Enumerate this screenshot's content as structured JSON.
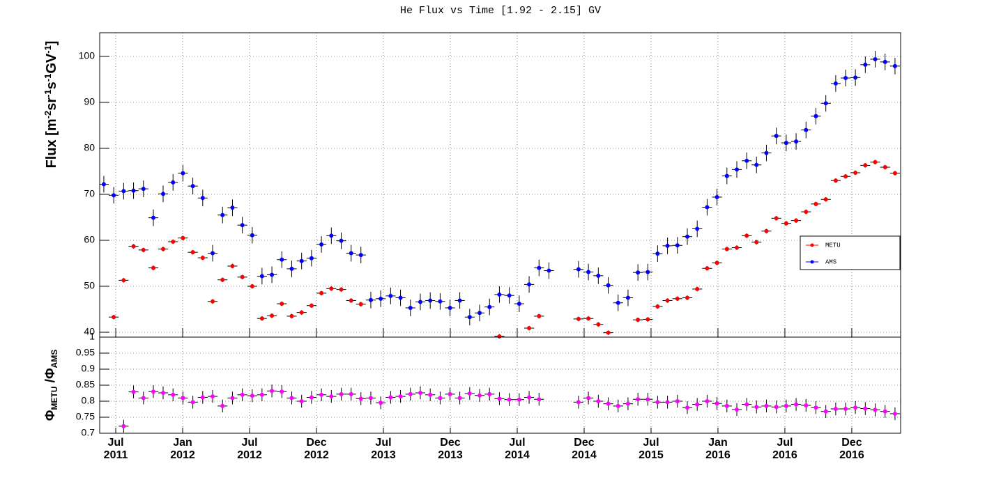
{
  "chart_data": [
    {
      "type": "scatter",
      "title": "He Flux vs Time [1.92 - 2.15] GV",
      "ylabel": [
        "Flux [m",
        "-2",
        "sr",
        "-1",
        "s",
        "-1",
        "GV",
        "-1",
        "]"
      ],
      "x": [
        2011.411,
        2011.485,
        2011.559,
        2011.633,
        2011.707,
        2011.781,
        2011.854,
        2011.928,
        2012.002,
        2012.076,
        2012.15,
        2012.224,
        2012.298,
        2012.372,
        2012.446,
        2012.52,
        2012.593,
        2012.667,
        2012.741,
        2012.815,
        2012.889,
        2012.963,
        2013.037,
        2013.111,
        2013.185,
        2013.259,
        2013.332,
        2013.406,
        2013.48,
        2013.554,
        2013.628,
        2013.702,
        2013.776,
        2013.85,
        2013.924,
        2013.998,
        2014.071,
        2014.145,
        2014.219,
        2014.293,
        2014.367,
        2014.441,
        2014.515,
        2014.589,
        2014.663,
        2014.737,
        2014.81,
        2014.884,
        2014.958,
        2015.032,
        2015.106,
        2015.18,
        2015.254,
        2015.328,
        2015.402,
        2015.476,
        2015.549,
        2015.623,
        2015.697,
        2015.771,
        2015.845,
        2015.919,
        2015.993,
        2016.067,
        2016.141,
        2016.215,
        2016.288,
        2016.362,
        2016.436,
        2016.51,
        2016.584,
        2016.658,
        2016.732,
        2016.806,
        2016.88,
        2016.954,
        2017.027,
        2017.101,
        2017.175,
        2017.249,
        2017.323
      ],
      "xlim": [
        2011.38,
        2017.365
      ],
      "xticks": [
        2011.5,
        2012,
        2012.5,
        2013,
        2013.5,
        2014,
        2014.5,
        2015,
        2015.5,
        2016,
        2016.5,
        2017
      ],
      "ylim": [
        38.94,
        105.15
      ],
      "yticks": [
        40,
        50,
        60,
        70,
        80,
        90,
        100
      ],
      "grid": true,
      "legend": "right",
      "xerr": 0.037,
      "series": [
        {
          "name": "METU",
          "color": "#ff0000",
          "error": 0.5,
          "values": [
            null,
            43.3,
            51.3,
            58.7,
            57.9,
            54.0,
            58.1,
            59.7,
            60.5,
            57.4,
            56.2,
            46.7,
            51.4,
            54.4,
            52.0,
            50.0,
            43.0,
            43.6,
            46.2,
            43.5,
            44.3,
            45.8,
            48.5,
            49.5,
            49.3,
            46.9,
            46.1,
            null,
            null,
            null,
            null,
            null,
            null,
            null,
            null,
            null,
            null,
            null,
            null,
            null,
            39.1,
            null,
            null,
            40.9,
            43.5,
            null,
            null,
            null,
            42.9,
            43.0,
            41.7,
            39.9,
            null,
            null,
            42.7,
            42.8,
            45.6,
            46.9,
            47.3,
            47.5,
            49.4,
            53.9,
            55.1,
            58.1,
            58.4,
            61.0,
            59.6,
            62.0,
            64.8,
            63.7,
            64.3,
            66.2,
            67.9,
            68.9,
            73.0,
            73.9,
            74.7,
            76.3,
            77.0,
            75.9,
            74.6
          ]
        },
        {
          "name": "AMS",
          "color": "#0000ff",
          "error": 1.8,
          "values": [
            72.2,
            69.8,
            70.7,
            70.8,
            71.2,
            64.9,
            70.1,
            72.6,
            74.6,
            71.8,
            69.2,
            57.2,
            65.5,
            67.1,
            63.3,
            61.1,
            52.2,
            52.5,
            55.8,
            53.8,
            55.5,
            56.1,
            59.1,
            61.0,
            59.9,
            57.2,
            56.8,
            47.0,
            47.3,
            47.9,
            47.5,
            45.3,
            46.6,
            46.9,
            46.7,
            45.3,
            46.9,
            43.3,
            44.2,
            45.5,
            48.2,
            48.0,
            46.2,
            50.4,
            54.0,
            53.4,
            null,
            null,
            53.7,
            53.1,
            52.3,
            50.2,
            46.4,
            47.5,
            53.0,
            53.1,
            57.1,
            58.8,
            58.9,
            60.8,
            62.5,
            67.2,
            69.4,
            74.0,
            75.4,
            77.3,
            76.4,
            79.0,
            82.7,
            81.2,
            81.5,
            84.0,
            87.0,
            89.8,
            94.1,
            95.3,
            95.4,
            98.2,
            99.4,
            98.8,
            97.9
          ]
        }
      ]
    },
    {
      "type": "scatter",
      "ylabel": [
        "Φ",
        "METU",
        " /Φ",
        "AMS"
      ],
      "x": [
        2011.411,
        2011.485,
        2011.559,
        2011.633,
        2011.707,
        2011.781,
        2011.854,
        2011.928,
        2012.002,
        2012.076,
        2012.15,
        2012.224,
        2012.298,
        2012.372,
        2012.446,
        2012.52,
        2012.593,
        2012.667,
        2012.741,
        2012.815,
        2012.889,
        2012.963,
        2013.037,
        2013.111,
        2013.185,
        2013.259,
        2013.332,
        2013.406,
        2013.48,
        2013.554,
        2013.628,
        2013.702,
        2013.776,
        2013.85,
        2013.924,
        2013.998,
        2014.071,
        2014.145,
        2014.219,
        2014.293,
        2014.367,
        2014.441,
        2014.515,
        2014.589,
        2014.663,
        2014.737,
        2014.81,
        2014.884,
        2014.958,
        2015.032,
        2015.106,
        2015.18,
        2015.254,
        2015.328,
        2015.402,
        2015.476,
        2015.549,
        2015.623,
        2015.697,
        2015.771,
        2015.845,
        2015.919,
        2015.993,
        2016.067,
        2016.141,
        2016.215,
        2016.288,
        2016.362,
        2016.436,
        2016.51,
        2016.584,
        2016.658,
        2016.732,
        2016.806,
        2016.88,
        2016.954,
        2017.027,
        2017.101,
        2017.175,
        2017.249,
        2017.323
      ],
      "xlim": [
        2011.38,
        2017.365
      ],
      "xticks": [
        {
          "value": 2011.5,
          "label": "Jul 2011"
        },
        {
          "value": 2012,
          "label": "Jan 2012"
        },
        {
          "value": 2012.5,
          "label": "Jul 2012"
        },
        {
          "value": 2013,
          "label": "Dec 2012"
        },
        {
          "value": 2013.5,
          "label": "Jul 2013"
        },
        {
          "value": 2014,
          "label": "Dec 2013"
        },
        {
          "value": 2014.5,
          "label": "Jul 2014"
        },
        {
          "value": 2015,
          "label": "Dec 2014"
        },
        {
          "value": 2015.5,
          "label": "Jul 2015"
        },
        {
          "value": 2016,
          "label": "Jan 2016"
        },
        {
          "value": 2016.5,
          "label": "Jul 2016"
        },
        {
          "value": 2017,
          "label": "Dec 2016"
        }
      ],
      "ylim": [
        0.7,
        1.0
      ],
      "yticks": [
        0.7,
        0.75,
        0.8,
        0.85,
        0.9,
        0.95,
        1
      ],
      "grid": true,
      "xerr": 0.037,
      "series": [
        {
          "color": "#ff00ff",
          "error": 0.02,
          "values": [
            null,
            null,
            0.722,
            0.829,
            0.81,
            0.83,
            0.826,
            0.82,
            0.81,
            0.797,
            0.812,
            0.815,
            0.785,
            0.81,
            0.82,
            0.817,
            0.82,
            0.832,
            0.83,
            0.81,
            0.8,
            0.812,
            0.82,
            0.815,
            0.822,
            0.822,
            0.808,
            0.81,
            0.795,
            0.812,
            0.815,
            0.822,
            0.826,
            0.82,
            0.81,
            0.822,
            0.81,
            0.824,
            0.818,
            0.822,
            0.808,
            0.805,
            0.805,
            0.812,
            0.806,
            null,
            null,
            null,
            0.797,
            0.81,
            0.8,
            0.792,
            0.785,
            0.792,
            0.806,
            0.806,
            0.797,
            0.797,
            0.8,
            0.78,
            0.79,
            0.8,
            0.793,
            0.785,
            0.774,
            0.79,
            0.782,
            0.785,
            0.782,
            0.785,
            0.79,
            0.787,
            0.78,
            0.768,
            0.776,
            0.776,
            0.78,
            0.777,
            0.773,
            0.768,
            0.761
          ]
        }
      ]
    }
  ]
}
